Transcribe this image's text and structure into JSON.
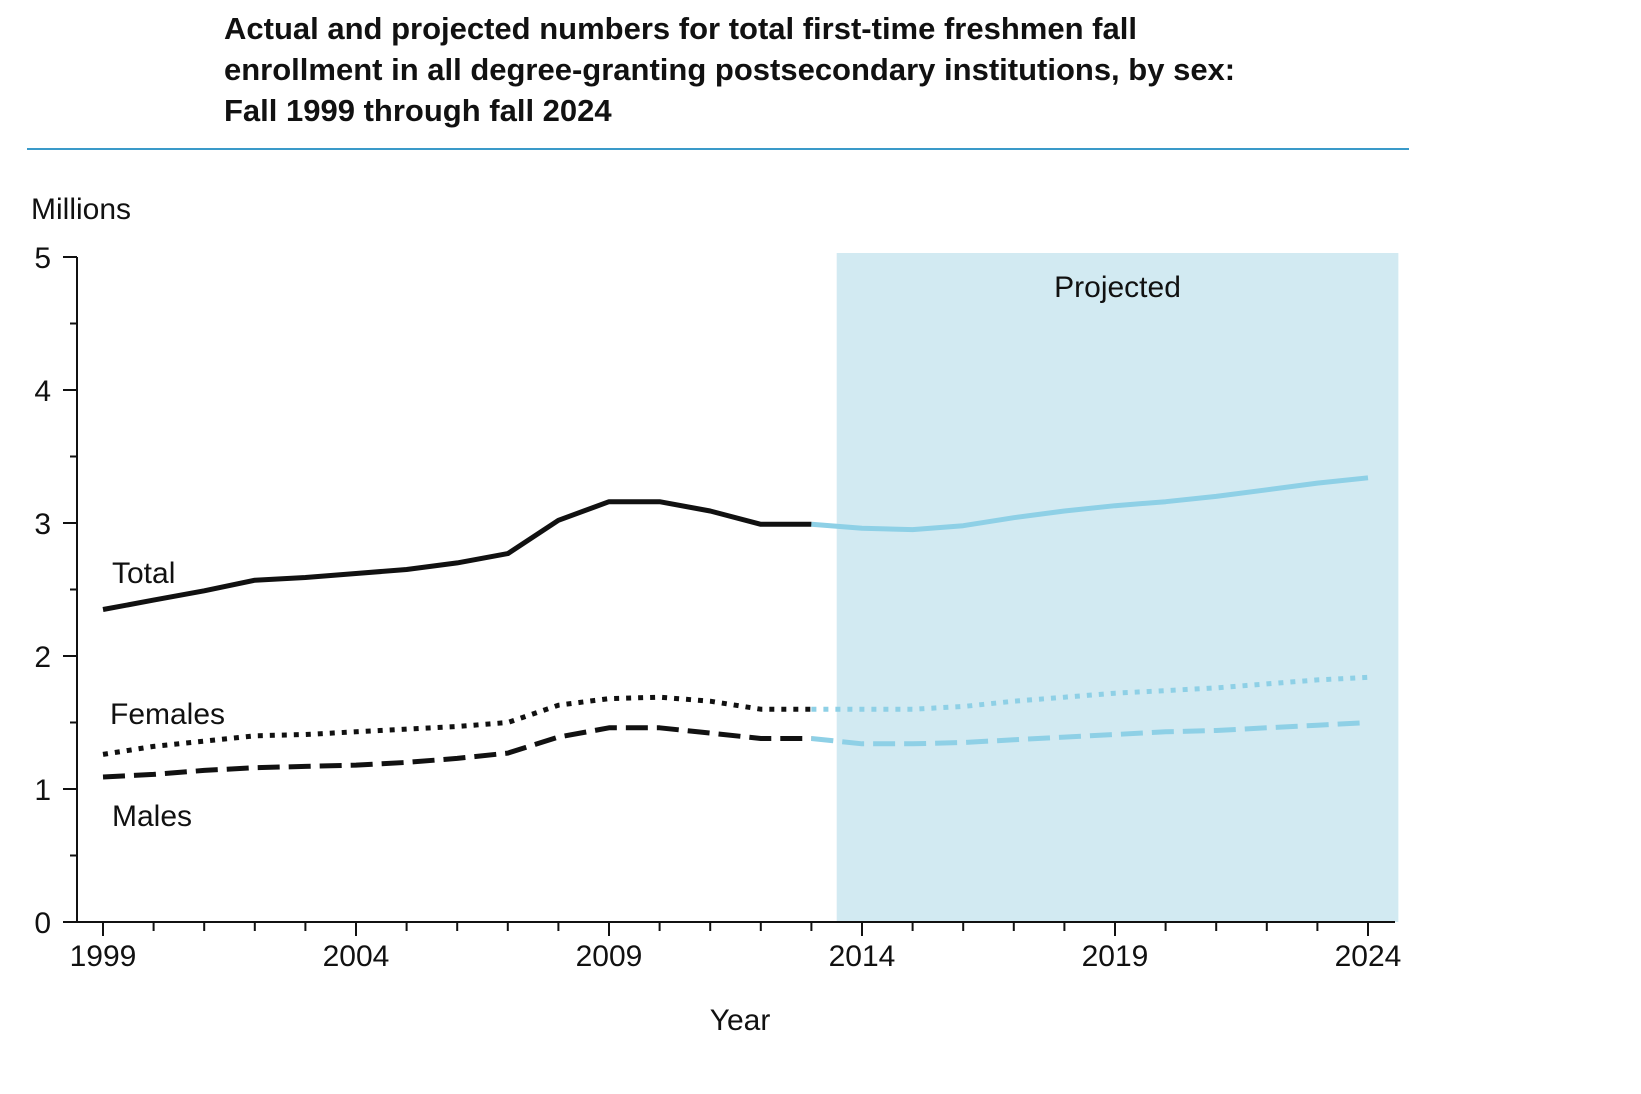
{
  "title_lines": [
    "Actual and projected numbers for total first-time freshmen fall",
    "enrollment in all degree-granting postsecondary institutions, by sex:",
    "Fall 1999 through fall 2024"
  ],
  "chart_data": {
    "type": "line",
    "title": "Actual and projected numbers for total first-time freshmen fall enrollment in all degree-granting postsecondary institutions, by sex: Fall 1999 through fall 2024",
    "xlabel": "Year",
    "ylabel": "Millions",
    "xlim": [
      1999,
      2024
    ],
    "ylim": [
      0,
      5
    ],
    "yticks": [
      0,
      1,
      2,
      3,
      4,
      5
    ],
    "ytick_labels": [
      "0",
      "1",
      "2",
      "3",
      "4",
      "5"
    ],
    "xticks": [
      1999,
      2004,
      2009,
      2014,
      2019,
      2024
    ],
    "xtick_labels": [
      "1999",
      "2004",
      "2009",
      "2014",
      "2019",
      "2024"
    ],
    "projected_region": {
      "start": 2013.5,
      "end": 2024.6,
      "label": "Projected"
    },
    "projection_start_year": 2013,
    "actual_color": "#111111",
    "projected_color": "#8ed0e6",
    "shade_color": "#d2eaf2",
    "x": [
      1999,
      2000,
      2001,
      2002,
      2003,
      2004,
      2005,
      2006,
      2007,
      2008,
      2009,
      2010,
      2011,
      2012,
      2013,
      2014,
      2015,
      2016,
      2017,
      2018,
      2019,
      2020,
      2021,
      2022,
      2023,
      2024
    ],
    "series": [
      {
        "name": "Total",
        "style": "solid",
        "label": "Total",
        "values": [
          2.35,
          2.42,
          2.49,
          2.57,
          2.59,
          2.62,
          2.65,
          2.7,
          2.77,
          3.02,
          3.16,
          3.16,
          3.09,
          2.99,
          2.99,
          2.96,
          2.95,
          2.98,
          3.04,
          3.09,
          3.13,
          3.16,
          3.2,
          3.25,
          3.3,
          3.34
        ]
      },
      {
        "name": "Females",
        "style": "dotted",
        "label": "Females",
        "values": [
          1.26,
          1.32,
          1.36,
          1.4,
          1.41,
          1.43,
          1.45,
          1.47,
          1.5,
          1.63,
          1.68,
          1.69,
          1.66,
          1.6,
          1.6,
          1.6,
          1.6,
          1.62,
          1.66,
          1.69,
          1.72,
          1.74,
          1.76,
          1.79,
          1.82,
          1.84
        ]
      },
      {
        "name": "Males",
        "style": "dashed",
        "label": "Males",
        "values": [
          1.09,
          1.11,
          1.14,
          1.16,
          1.17,
          1.18,
          1.2,
          1.23,
          1.27,
          1.39,
          1.46,
          1.46,
          1.42,
          1.38,
          1.38,
          1.34,
          1.34,
          1.35,
          1.37,
          1.39,
          1.41,
          1.43,
          1.44,
          1.46,
          1.48,
          1.5
        ]
      }
    ]
  }
}
